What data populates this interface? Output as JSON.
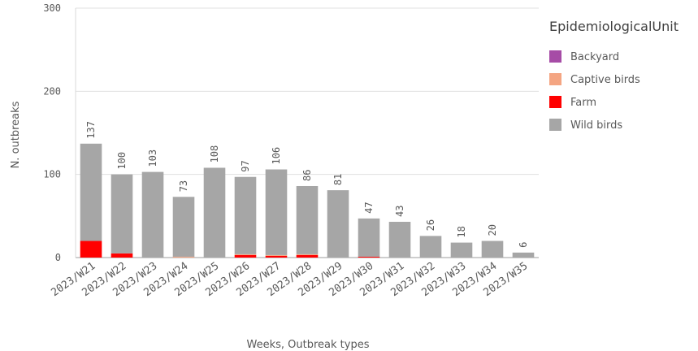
{
  "chart_data": {
    "type": "bar",
    "stacked": true,
    "categories": [
      "2023/W21",
      "2023/W22",
      "2023/W23",
      "2023/W24",
      "2023/W25",
      "2023/W26",
      "2023/W27",
      "2023/W28",
      "2023/W29",
      "2023/W30",
      "2023/W31",
      "2023/W32",
      "2023/W33",
      "2023/W34",
      "2023/W35"
    ],
    "series": [
      {
        "name": "Backyard",
        "color": "#a64ca6",
        "values": [
          0,
          0,
          0,
          0,
          0,
          0,
          0,
          0,
          0,
          0,
          0,
          0,
          0,
          0,
          0
        ]
      },
      {
        "name": "Captive birds",
        "color": "#f4a582",
        "values": [
          0,
          0,
          0,
          1,
          0,
          1,
          1,
          1,
          0,
          0,
          0,
          0,
          0,
          0,
          0
        ]
      },
      {
        "name": "Farm",
        "color": "#ff0000",
        "values": [
          20,
          5,
          0,
          0,
          0,
          3,
          2,
          3,
          0,
          1,
          0,
          0,
          0,
          0,
          0
        ]
      },
      {
        "name": "Wild birds",
        "color": "#a6a6a6",
        "values": [
          117,
          95,
          103,
          72,
          108,
          93,
          103,
          82,
          81,
          46,
          43,
          26,
          18,
          20,
          6
        ]
      }
    ],
    "totals": [
      137,
      100,
      103,
      73,
      108,
      97,
      106,
      86,
      81,
      47,
      43,
      26,
      18,
      20,
      6
    ],
    "xlabel": "Weeks, Outbreak types",
    "ylabel": "N. outbreaks",
    "ylim": [
      0,
      300
    ],
    "yticks": [
      0,
      100,
      200,
      300
    ],
    "legend_title": "EpidemiologicalUnit",
    "legend_position": "right",
    "grid": true
  }
}
